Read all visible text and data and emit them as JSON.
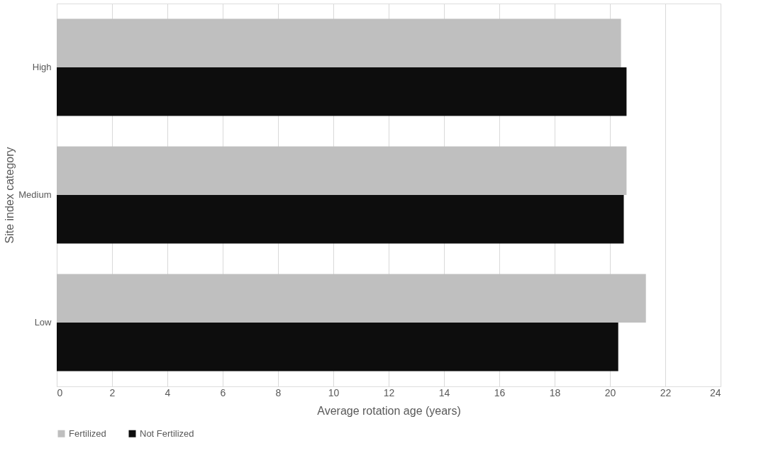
{
  "chart_data": {
    "type": "bar",
    "orientation": "horizontal",
    "xlabel": "Average rotation age (years)",
    "ylabel": "Site index category",
    "categories": [
      "High",
      "Medium",
      "Low"
    ],
    "series": [
      {
        "name": "Fertilized",
        "color": "#bfbfbf",
        "values": [
          20.4,
          20.6,
          21.3
        ]
      },
      {
        "name": "Not Fertilized",
        "color": "#0d0d0d",
        "values": [
          20.6,
          20.5,
          20.3
        ]
      }
    ],
    "xlim": [
      0,
      24
    ],
    "xticks": [
      0,
      2,
      4,
      6,
      8,
      10,
      12,
      14,
      16,
      18,
      20,
      22,
      24
    ],
    "grid": "x",
    "legend": "bottom"
  }
}
